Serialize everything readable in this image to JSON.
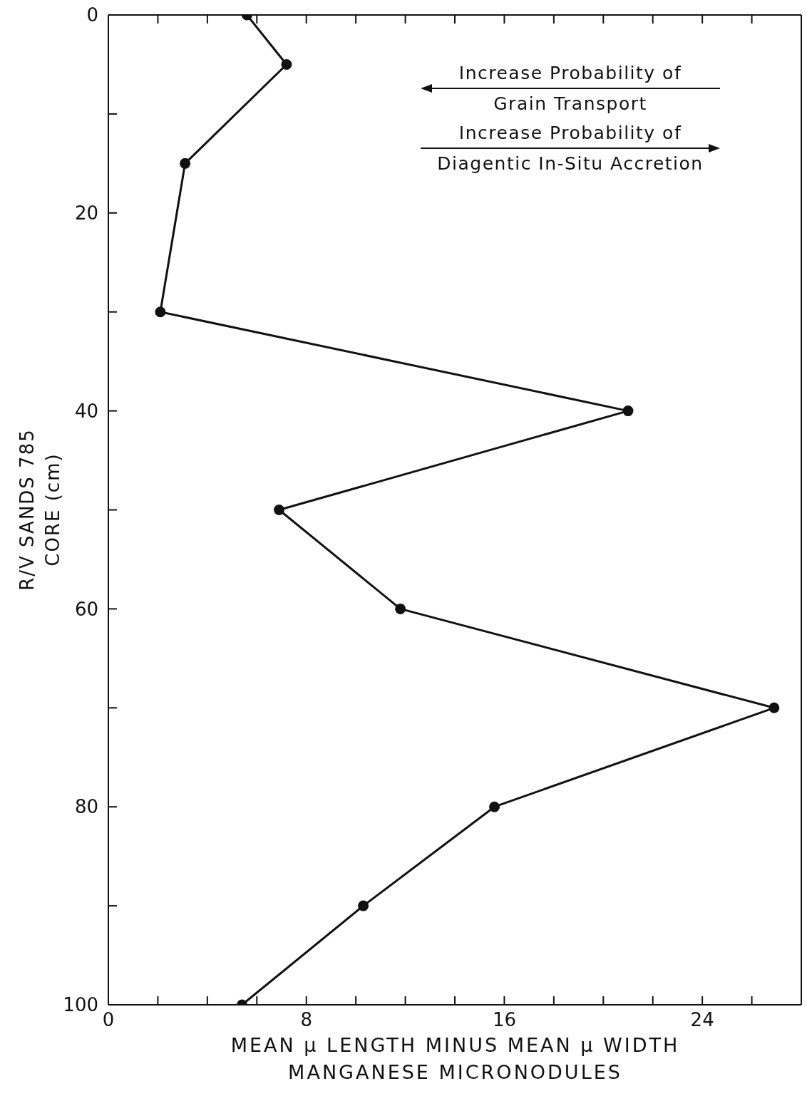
{
  "chart_data": {
    "type": "line",
    "xlabel": "MEAN μ LENGTH MINUS MEAN μ WIDTH\nMANGANESE MICRONODULES",
    "ylabel": "R/V SANDS 785\nCORE (cm)",
    "annotations": [
      "Increase Probability of\nGrain Transport",
      "Increase Probability of\nDiagentic In-Situ Accretion"
    ],
    "x": [
      5.6,
      7.2,
      3.1,
      2.1,
      21.0,
      6.9,
      11.8,
      26.9,
      15.6,
      10.3,
      5.4
    ],
    "values": [
      0,
      5,
      15,
      30,
      40,
      50,
      60,
      70,
      80,
      90,
      100
    ],
    "color": "#111111",
    "marker": "circle",
    "line_style": "solid",
    "grid": false,
    "legend": false,
    "xlim": [
      0,
      28
    ],
    "xticks": [
      0,
      {
        "value": 2,
        "label": null
      },
      {
        "value": 4,
        "label": null
      },
      {
        "value": 6,
        "label": null
      },
      8,
      {
        "value": 10,
        "label": null
      },
      {
        "value": 12,
        "label": null
      },
      {
        "value": 14,
        "label": null
      },
      16,
      {
        "value": 18,
        "label": null
      },
      {
        "value": 20,
        "label": null
      },
      {
        "value": 22,
        "label": null
      },
      24,
      {
        "value": 26,
        "label": null
      }
    ],
    "ylim": [
      100,
      0
    ],
    "yticks": [
      0,
      {
        "value": 10,
        "label": null
      },
      20,
      {
        "value": 30,
        "label": null
      },
      40,
      {
        "value": 50,
        "label": null
      },
      60,
      {
        "value": 70,
        "label": null
      },
      80,
      {
        "value": 90,
        "label": null
      },
      100
    ]
  }
}
